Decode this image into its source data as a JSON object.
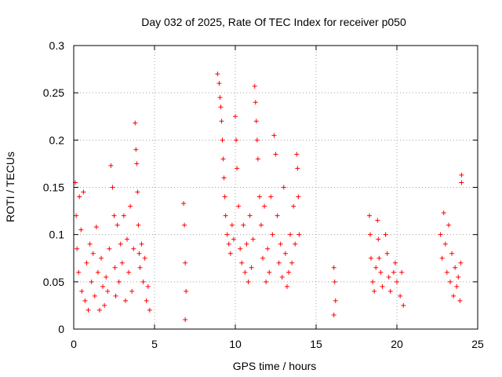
{
  "chart_data": {
    "type": "scatter",
    "title": "Day 032 of 2025, Rate Of TEC Index for receiver p050",
    "xlabel": "GPS time / hours",
    "ylabel": "ROTI / TECUs",
    "xlim": [
      0,
      25
    ],
    "ylim": [
      0,
      0.3
    ],
    "x_ticks": [
      0,
      5,
      10,
      15,
      20,
      25
    ],
    "y_ticks": [
      0,
      0.05,
      0.1,
      0.15,
      0.2,
      0.25,
      0.3
    ],
    "x_tick_labels": [
      "0",
      "5",
      "10",
      "15",
      "20",
      "25"
    ],
    "y_tick_labels": [
      "0",
      "0.05",
      "0.1",
      "0.15",
      "0.2",
      "0.25",
      "0.3"
    ],
    "grid": true,
    "marker": "+",
    "series": [
      {
        "name": "ROTI",
        "color": "#ff0000",
        "points": [
          [
            0.1,
            0.155
          ],
          [
            0.15,
            0.12
          ],
          [
            0.2,
            0.085
          ],
          [
            0.3,
            0.06
          ],
          [
            0.35,
            0.14
          ],
          [
            0.45,
            0.105
          ],
          [
            0.5,
            0.04
          ],
          [
            0.6,
            0.145
          ],
          [
            0.7,
            0.03
          ],
          [
            0.8,
            0.07
          ],
          [
            0.9,
            0.02
          ],
          [
            1.0,
            0.09
          ],
          [
            1.1,
            0.05
          ],
          [
            1.2,
            0.08
          ],
          [
            1.3,
            0.035
          ],
          [
            1.4,
            0.108
          ],
          [
            1.5,
            0.06
          ],
          [
            1.6,
            0.02
          ],
          [
            1.7,
            0.075
          ],
          [
            1.8,
            0.045
          ],
          [
            1.9,
            0.025
          ],
          [
            2.0,
            0.055
          ],
          [
            2.1,
            0.04
          ],
          [
            2.2,
            0.085
          ],
          [
            2.3,
            0.173
          ],
          [
            2.4,
            0.15
          ],
          [
            2.5,
            0.12
          ],
          [
            2.55,
            0.065
          ],
          [
            2.6,
            0.035
          ],
          [
            2.7,
            0.11
          ],
          [
            2.8,
            0.05
          ],
          [
            2.9,
            0.09
          ],
          [
            3.0,
            0.07
          ],
          [
            3.1,
            0.12
          ],
          [
            3.2,
            0.03
          ],
          [
            3.3,
            0.095
          ],
          [
            3.4,
            0.06
          ],
          [
            3.5,
            0.13
          ],
          [
            3.6,
            0.04
          ],
          [
            3.7,
            0.085
          ],
          [
            3.8,
            0.218
          ],
          [
            3.85,
            0.19
          ],
          [
            3.9,
            0.175
          ],
          [
            3.95,
            0.145
          ],
          [
            4.0,
            0.11
          ],
          [
            4.05,
            0.08
          ],
          [
            4.1,
            0.065
          ],
          [
            4.2,
            0.09
          ],
          [
            4.3,
            0.05
          ],
          [
            4.4,
            0.075
          ],
          [
            4.5,
            0.03
          ],
          [
            4.6,
            0.045
          ],
          [
            4.7,
            0.02
          ],
          [
            6.8,
            0.133
          ],
          [
            6.85,
            0.11
          ],
          [
            6.9,
            0.07
          ],
          [
            6.95,
            0.04
          ],
          [
            6.9,
            0.01
          ],
          [
            8.9,
            0.27
          ],
          [
            9.0,
            0.26
          ],
          [
            9.05,
            0.245
          ],
          [
            9.1,
            0.235
          ],
          [
            9.15,
            0.22
          ],
          [
            9.2,
            0.2
          ],
          [
            9.25,
            0.18
          ],
          [
            9.3,
            0.16
          ],
          [
            9.35,
            0.14
          ],
          [
            9.4,
            0.12
          ],
          [
            9.5,
            0.1
          ],
          [
            9.6,
            0.09
          ],
          [
            9.7,
            0.08
          ],
          [
            9.8,
            0.11
          ],
          [
            9.9,
            0.095
          ],
          [
            10.0,
            0.225
          ],
          [
            10.05,
            0.2
          ],
          [
            10.1,
            0.17
          ],
          [
            10.2,
            0.13
          ],
          [
            10.3,
            0.085
          ],
          [
            10.4,
            0.07
          ],
          [
            10.5,
            0.11
          ],
          [
            10.6,
            0.06
          ],
          [
            10.7,
            0.09
          ],
          [
            10.8,
            0.05
          ],
          [
            10.9,
            0.12
          ],
          [
            11.0,
            0.065
          ],
          [
            11.1,
            0.095
          ],
          [
            11.2,
            0.257
          ],
          [
            11.25,
            0.24
          ],
          [
            11.3,
            0.22
          ],
          [
            11.35,
            0.2
          ],
          [
            11.4,
            0.18
          ],
          [
            11.5,
            0.14
          ],
          [
            11.6,
            0.11
          ],
          [
            11.7,
            0.075
          ],
          [
            11.8,
            0.13
          ],
          [
            11.9,
            0.05
          ],
          [
            12.0,
            0.085
          ],
          [
            12.1,
            0.06
          ],
          [
            12.2,
            0.14
          ],
          [
            12.3,
            0.1
          ],
          [
            12.4,
            0.205
          ],
          [
            12.5,
            0.185
          ],
          [
            12.6,
            0.12
          ],
          [
            12.7,
            0.07
          ],
          [
            12.8,
            0.09
          ],
          [
            12.9,
            0.055
          ],
          [
            13.0,
            0.15
          ],
          [
            13.1,
            0.08
          ],
          [
            13.2,
            0.045
          ],
          [
            13.3,
            0.06
          ],
          [
            13.4,
            0.1
          ],
          [
            13.5,
            0.07
          ],
          [
            13.6,
            0.13
          ],
          [
            13.7,
            0.09
          ],
          [
            13.8,
            0.185
          ],
          [
            13.85,
            0.17
          ],
          [
            13.9,
            0.14
          ],
          [
            13.95,
            0.1
          ],
          [
            16.1,
            0.065
          ],
          [
            16.15,
            0.05
          ],
          [
            16.2,
            0.03
          ],
          [
            16.1,
            0.015
          ],
          [
            18.3,
            0.12
          ],
          [
            18.35,
            0.1
          ],
          [
            18.4,
            0.075
          ],
          [
            18.5,
            0.05
          ],
          [
            18.6,
            0.04
          ],
          [
            18.7,
            0.065
          ],
          [
            18.8,
            0.115
          ],
          [
            18.85,
            0.095
          ],
          [
            18.9,
            0.075
          ],
          [
            19.0,
            0.06
          ],
          [
            19.1,
            0.045
          ],
          [
            19.3,
            0.1
          ],
          [
            19.4,
            0.08
          ],
          [
            19.5,
            0.055
          ],
          [
            19.6,
            0.04
          ],
          [
            19.8,
            0.06
          ],
          [
            19.9,
            0.07
          ],
          [
            20.0,
            0.05
          ],
          [
            20.2,
            0.035
          ],
          [
            20.3,
            0.06
          ],
          [
            20.4,
            0.025
          ],
          [
            22.7,
            0.1
          ],
          [
            22.8,
            0.075
          ],
          [
            22.9,
            0.123
          ],
          [
            23.0,
            0.09
          ],
          [
            23.1,
            0.06
          ],
          [
            23.2,
            0.11
          ],
          [
            23.3,
            0.05
          ],
          [
            23.4,
            0.08
          ],
          [
            23.5,
            0.035
          ],
          [
            23.6,
            0.065
          ],
          [
            23.7,
            0.045
          ],
          [
            23.8,
            0.055
          ],
          [
            23.9,
            0.03
          ],
          [
            24.0,
            0.163
          ],
          [
            24.0,
            0.155
          ],
          [
            23.95,
            0.07
          ]
        ]
      }
    ]
  }
}
